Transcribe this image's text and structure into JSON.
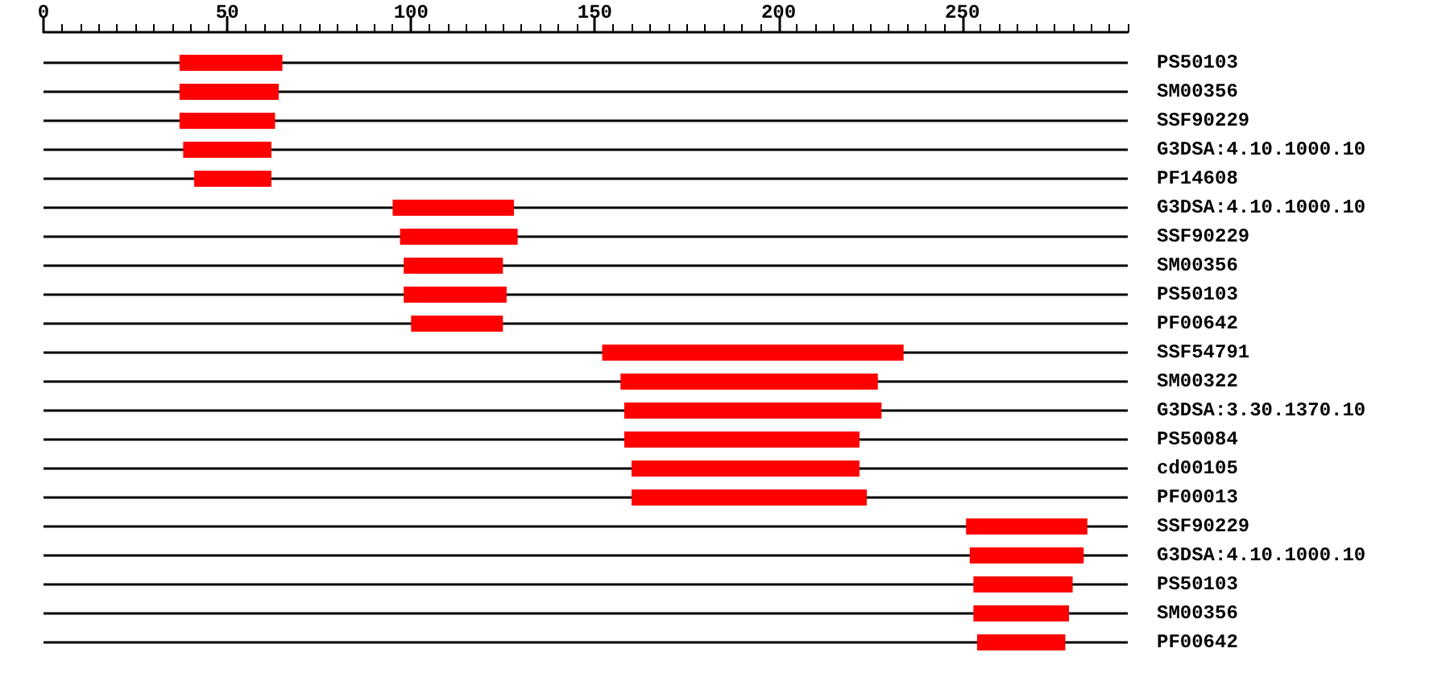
{
  "chart_data": {
    "type": "bar",
    "orientation": "horizontal",
    "color": "#ff0000",
    "grid": "y",
    "categories": [
      "PS50103",
      "SM00356",
      "SSF90229",
      "G3DSA:4.10.1000.10",
      "PF14608",
      "G3DSA:4.10.1000.10",
      "SSF90229",
      "SM00356",
      "PS50103",
      "PF00642",
      "SSF54791",
      "SM00322",
      "G3DSA:3.30.1370.10",
      "PS50084",
      "cd00105",
      "PF00013",
      "SSF90229",
      "G3DSA:4.10.1000.10",
      "PS50103",
      "SM00356",
      "PF00642"
    ],
    "base": [
      37,
      37,
      37,
      38,
      41,
      95,
      97,
      98,
      98,
      100,
      152,
      157,
      158,
      158,
      160,
      160,
      251,
      252,
      253,
      253,
      254
    ],
    "values": [
      28,
      27,
      26,
      24,
      21,
      33,
      32,
      27,
      28,
      25,
      82,
      70,
      70,
      64,
      62,
      64,
      33,
      31,
      27,
      26,
      24
    ],
    "xlim": [
      0,
      295
    ],
    "xticks": [
      0,
      {
        "value": 5,
        "label": null
      },
      {
        "value": 10,
        "label": null
      },
      {
        "value": 15,
        "label": null
      },
      {
        "value": 20,
        "label": null
      },
      {
        "value": 25,
        "label": null
      },
      {
        "value": 30,
        "label": null
      },
      {
        "value": 35,
        "label": null
      },
      {
        "value": 40,
        "label": null
      },
      {
        "value": 45,
        "label": null
      },
      50,
      {
        "value": 55,
        "label": null
      },
      {
        "value": 60,
        "label": null
      },
      {
        "value": 65,
        "label": null
      },
      {
        "value": 70,
        "label": null
      },
      {
        "value": 75,
        "label": null
      },
      {
        "value": 80,
        "label": null
      },
      {
        "value": 85,
        "label": null
      },
      {
        "value": 90,
        "label": null
      },
      {
        "value": 95,
        "label": null
      },
      100,
      {
        "value": 105,
        "label": null
      },
      {
        "value": 110,
        "label": null
      },
      {
        "value": 115,
        "label": null
      },
      {
        "value": 120,
        "label": null
      },
      {
        "value": 125,
        "label": null
      },
      {
        "value": 130,
        "label": null
      },
      {
        "value": 135,
        "label": null
      },
      {
        "value": 140,
        "label": null
      },
      {
        "value": 145,
        "label": null
      },
      150,
      {
        "value": 155,
        "label": null
      },
      {
        "value": 160,
        "label": null
      },
      {
        "value": 165,
        "label": null
      },
      {
        "value": 170,
        "label": null
      },
      {
        "value": 175,
        "label": null
      },
      {
        "value": 180,
        "label": null
      },
      {
        "value": 185,
        "label": null
      },
      {
        "value": 190,
        "label": null
      },
      {
        "value": 195,
        "label": null
      },
      200,
      {
        "value": 205,
        "label": null
      },
      {
        "value": 210,
        "label": null
      },
      {
        "value": 215,
        "label": null
      },
      {
        "value": 220,
        "label": null
      },
      {
        "value": 225,
        "label": null
      },
      {
        "value": 230,
        "label": null
      },
      {
        "value": 235,
        "label": null
      },
      {
        "value": 240,
        "label": null
      },
      {
        "value": 245,
        "label": null
      },
      250,
      {
        "value": 255,
        "label": null
      },
      {
        "value": 260,
        "label": null
      },
      {
        "value": 265,
        "label": null
      },
      {
        "value": 270,
        "label": null
      },
      {
        "value": 275,
        "label": null
      },
      {
        "value": 280,
        "label": null
      },
      {
        "value": 285,
        "label": null
      },
      {
        "value": 290,
        "label": null
      },
      {
        "value": 295,
        "label": null
      }
    ]
  }
}
